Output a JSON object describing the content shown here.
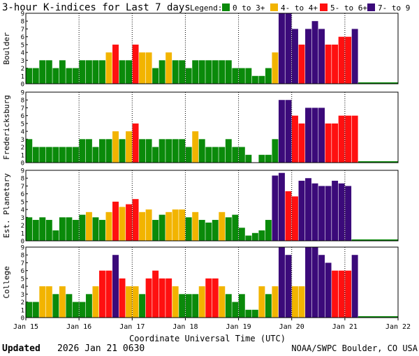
{
  "chart_data": {
    "type": "bar",
    "title": "3-hour K-indices for Last 7 days",
    "legend": {
      "label": "Legend:",
      "position": "top-right",
      "entries": [
        {
          "name": "0 to 3+",
          "color": "#0a8a0a"
        },
        {
          "name": "4- to 4+",
          "color": "#f2b400"
        },
        {
          "name": "5- to 6+",
          "color": "#ff1010"
        },
        {
          "name": "7- to 9",
          "color": "#3b0a7a"
        }
      ]
    },
    "xlabel": "Coordinate Universal Time (UTC)",
    "x_ticks": [
      "Jan 15",
      "Jan 16",
      "Jan 17",
      "Jan 18",
      "Jan 19",
      "Jan 20",
      "Jan 21",
      "Jan 22"
    ],
    "ylim": [
      0,
      9
    ],
    "y_ticks": [
      "0",
      "1",
      "2",
      "3",
      "4",
      "5",
      "6",
      "7",
      "8",
      "9"
    ],
    "bars_per_day": 8,
    "panels": [
      {
        "name": "Boulder",
        "values": [
          2,
          2,
          3,
          3,
          2,
          3,
          2,
          2,
          3,
          3,
          3,
          3,
          4,
          5,
          3,
          3,
          5,
          4,
          4,
          2,
          3,
          4,
          3,
          3,
          2,
          3,
          3,
          3,
          3,
          3,
          3,
          2,
          2,
          2,
          1,
          1,
          2,
          4,
          9,
          9,
          7,
          5,
          7,
          8,
          7,
          5,
          5,
          6,
          6,
          7
        ]
      },
      {
        "name": "Fredericksburg",
        "values": [
          3,
          2,
          2,
          2,
          2,
          2,
          2,
          2,
          3,
          3,
          2,
          3,
          3,
          4,
          3,
          4,
          5,
          3,
          3,
          2,
          3,
          3,
          3,
          3,
          2,
          4,
          3,
          2,
          2,
          2,
          3,
          2,
          2,
          1,
          0,
          1,
          1,
          3,
          8,
          8,
          6,
          5,
          7,
          7,
          7,
          5,
          5,
          6,
          6,
          6
        ]
      },
      {
        "name": "Est. Planetary",
        "values": [
          3,
          2.67,
          3,
          2.67,
          1.33,
          3,
          3,
          2.67,
          3.33,
          3.67,
          3,
          2.67,
          3.67,
          5,
          4.33,
          4.67,
          5.33,
          3.67,
          4,
          2.67,
          3.33,
          3.67,
          4,
          4,
          3,
          3.67,
          2.67,
          2.33,
          2.67,
          3.67,
          3,
          3.33,
          1.67,
          0.67,
          1,
          1.33,
          2.67,
          8.33,
          8.67,
          6.33,
          5.67,
          7.67,
          8,
          7.33,
          7,
          7,
          7.67,
          7.33,
          7
        ]
      },
      {
        "name": "College",
        "values": [
          2,
          2,
          4,
          4,
          3,
          4,
          3,
          2,
          2,
          3,
          4,
          6,
          6,
          8,
          5,
          4,
          4,
          3,
          5,
          6,
          5,
          5,
          4,
          3,
          3,
          3,
          4,
          5,
          5,
          4,
          3,
          2,
          3,
          1,
          1,
          4,
          3,
          4,
          9,
          8,
          4,
          4,
          9,
          9,
          8,
          7,
          6,
          6,
          6,
          8
        ]
      }
    ]
  },
  "footer": {
    "updated_label": "Updated",
    "updated_value": "2026 Jan 21 0630",
    "source": "NOAA/SWPC Boulder, CO USA"
  }
}
